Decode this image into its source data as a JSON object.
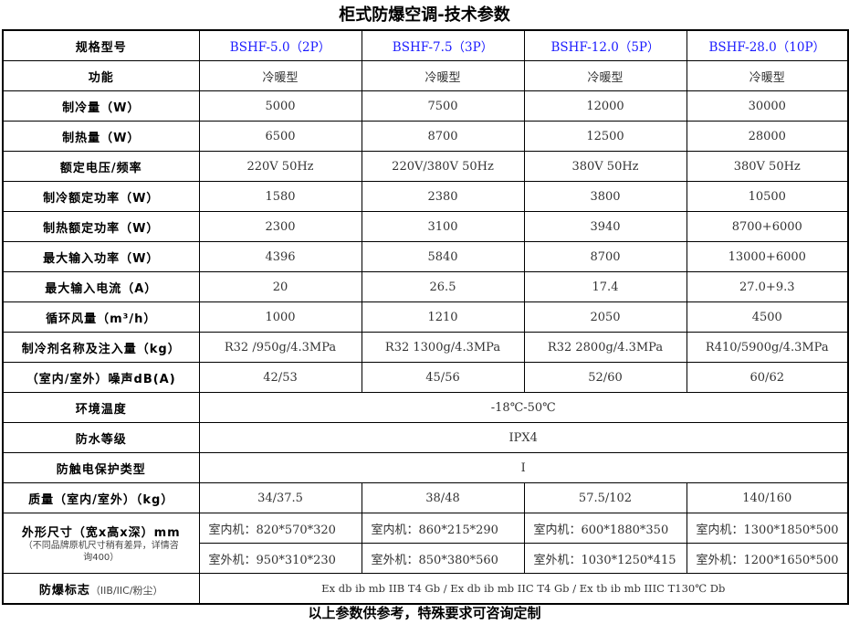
{
  "title": "柜式防爆空调-技术参数",
  "header": {
    "label": "规格型号",
    "models": [
      "BSHF-5.0（2P）",
      "BSHF-7.5（3P）",
      "BSHF-12.0（5P）",
      "BSHF-28.0（10P）"
    ]
  },
  "rows": [
    {
      "label": "功能",
      "values": [
        "冷暖型",
        "冷暖型",
        "冷暖型",
        "冷暖型"
      ]
    },
    {
      "label": "制冷量（W）",
      "values": [
        "5000",
        "7500",
        "12000",
        "30000"
      ]
    },
    {
      "label": "制热量（W）",
      "values": [
        "6500",
        "8700",
        "12500",
        "28000"
      ]
    },
    {
      "label": "额定电压/频率",
      "values": [
        "220V 50Hz",
        "220V/380V 50Hz",
        "380V 50Hz",
        "380V 50Hz"
      ]
    },
    {
      "label": "制冷额定功率（W）",
      "values": [
        "1580",
        "2380",
        "3800",
        "10500"
      ]
    },
    {
      "label": "制热额定功率（W）",
      "values": [
        "2300",
        "3100",
        "3940",
        "8700+6000"
      ]
    },
    {
      "label": "最大输入功率（W）",
      "values": [
        "4396",
        "5840",
        "8700",
        "13000+6000"
      ]
    },
    {
      "label": "最大输入电流（A）",
      "values": [
        "20",
        "26.5",
        "17.4",
        "27.0+9.3"
      ]
    },
    {
      "label": "循环风量（m³/h）",
      "values": [
        "1000",
        "1210",
        "2050",
        "4500"
      ]
    },
    {
      "label": "制冷剂名称及注入量（kg）",
      "values": [
        "R32 /950g/4.3MPa",
        "R32 1300g/4.3MPa",
        "R32 2800g/4.3MPa",
        "R410/5900g/4.3MPa"
      ]
    },
    {
      "label": "（室内/室外）噪声dB(A)",
      "values": [
        "42/53",
        "45/56",
        "52/60",
        "60/62"
      ]
    }
  ],
  "merged_rows": [
    {
      "label": "环境温度",
      "value": "-18℃-50℃"
    },
    {
      "label": "防水等级",
      "value": "IPX4"
    },
    {
      "label": "防触电保护类型",
      "value": "I"
    }
  ],
  "mass": {
    "label": "质量（室内/室外）（kg）",
    "values": [
      "34/37.5",
      "38/48",
      "57.5/102",
      "140/160"
    ]
  },
  "dimensions": {
    "label": "外形尺寸（宽x高x深）mm",
    "note": "（不同品牌原机尺寸稍有差异，详情咨询400）",
    "indoor": [
      "室内机：820*570*320",
      "室内机：860*215*290",
      "室内机：600*1880*350",
      "室内机：1300*1850*500"
    ],
    "outdoor": [
      "室外机：950*310*230",
      "室外机：850*380*560",
      "室外机：1030*1250*415",
      "室外机：1200*1650*500"
    ]
  },
  "marking": {
    "label": "防爆标志",
    "label_note": "（IIB/IIC/粉尘）",
    "value": "Ex db ib mb IIB T4 Gb / Ex db ib mb IIC T4 Gb / Ex tb ib mb IIIC T130℃ Db"
  },
  "footer": "以上参数供参考，特殊要求可咨询定制",
  "colors": {
    "model_text": "#1a1aff"
  }
}
